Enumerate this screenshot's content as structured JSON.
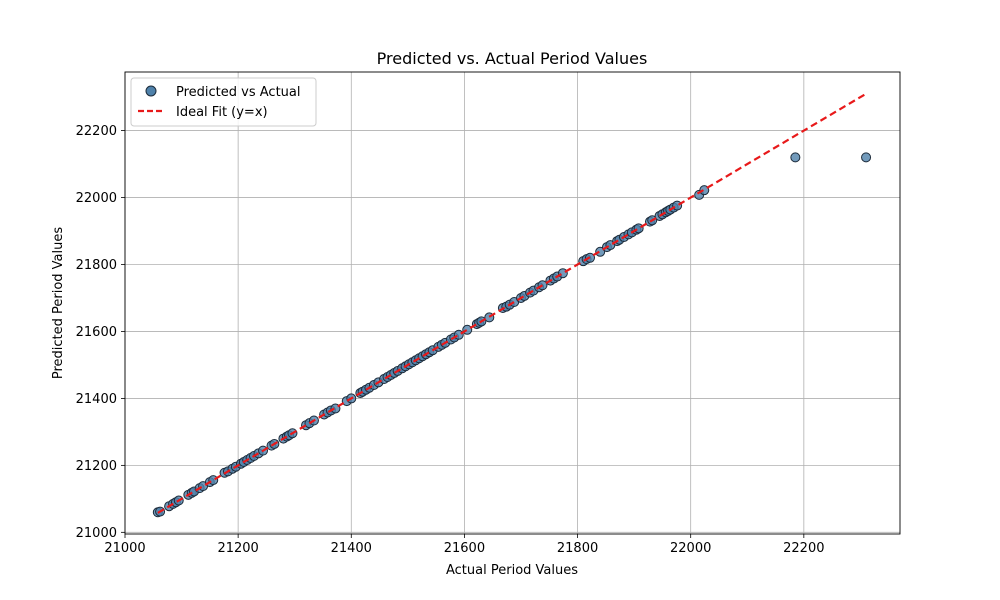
{
  "chart_data": {
    "type": "scatter",
    "title": "Predicted vs. Actual Period Values",
    "xlabel": "Actual Period Values",
    "ylabel": "Predicted Period Values",
    "xlim": [
      21000,
      22370
    ],
    "ylim": [
      20995,
      22375
    ],
    "xticks": [
      21000,
      21200,
      21400,
      21600,
      21800,
      22000,
      22200
    ],
    "yticks": [
      21000,
      21200,
      21400,
      21600,
      21800,
      22000,
      22200
    ],
    "grid": true,
    "legend_position": "upper-left",
    "series": [
      {
        "name": "Predicted vs Actual",
        "kind": "scatter",
        "color": "#4f81aa",
        "edge_color": "#1c2b3a",
        "x": [
          21058,
          21062,
          21078,
          21085,
          21090,
          21095,
          21112,
          21118,
          21122,
          21132,
          21138,
          21150,
          21156,
          21176,
          21182,
          21190,
          21196,
          21205,
          21210,
          21216,
          21222,
          21228,
          21236,
          21244,
          21259,
          21264,
          21280,
          21286,
          21290,
          21296,
          21320,
          21326,
          21334,
          21352,
          21358,
          21364,
          21372,
          21392,
          21400,
          21416,
          21420,
          21426,
          21432,
          21440,
          21448,
          21458,
          21464,
          21470,
          21476,
          21482,
          21490,
          21496,
          21502,
          21508,
          21514,
          21520,
          21526,
          21532,
          21538,
          21544,
          21554,
          21560,
          21566,
          21576,
          21582,
          21590,
          21605,
          21622,
          21626,
          21630,
          21644,
          21668,
          21674,
          21680,
          21688,
          21700,
          21706,
          21716,
          21722,
          21732,
          21738,
          21752,
          21758,
          21764,
          21774,
          21810,
          21816,
          21822,
          21840,
          21852,
          21858,
          21870,
          21874,
          21882,
          21890,
          21896,
          21904,
          21908,
          21928,
          21932,
          21945,
          21950,
          21956,
          21960,
          21964,
          21970,
          21976,
          22015,
          22024,
          22185,
          22310
        ],
        "y": [
          21060,
          21062,
          21078,
          21085,
          21090,
          21095,
          21112,
          21118,
          21122,
          21132,
          21138,
          21150,
          21156,
          21178,
          21182,
          21190,
          21196,
          21205,
          21210,
          21216,
          21222,
          21228,
          21236,
          21244,
          21259,
          21264,
          21280,
          21286,
          21290,
          21296,
          21320,
          21326,
          21334,
          21352,
          21358,
          21364,
          21370,
          21392,
          21400,
          21416,
          21420,
          21426,
          21432,
          21440,
          21448,
          21458,
          21464,
          21470,
          21476,
          21482,
          21490,
          21496,
          21502,
          21508,
          21514,
          21520,
          21526,
          21532,
          21538,
          21544,
          21554,
          21560,
          21566,
          21576,
          21582,
          21590,
          21605,
          21622,
          21626,
          21630,
          21642,
          21670,
          21674,
          21680,
          21688,
          21700,
          21706,
          21716,
          21722,
          21732,
          21738,
          21752,
          21758,
          21764,
          21774,
          21810,
          21816,
          21820,
          21838,
          21852,
          21858,
          21870,
          21874,
          21882,
          21890,
          21896,
          21904,
          21908,
          21928,
          21932,
          21945,
          21950,
          21956,
          21960,
          21964,
          21970,
          21976,
          22008,
          22022,
          22120,
          22120
        ]
      },
      {
        "name": "Ideal Fit (y=x)",
        "kind": "line",
        "color": "#e8191a",
        "dash": true,
        "x": [
          21058,
          22310
        ],
        "y": [
          21058,
          22310
        ]
      }
    ]
  }
}
